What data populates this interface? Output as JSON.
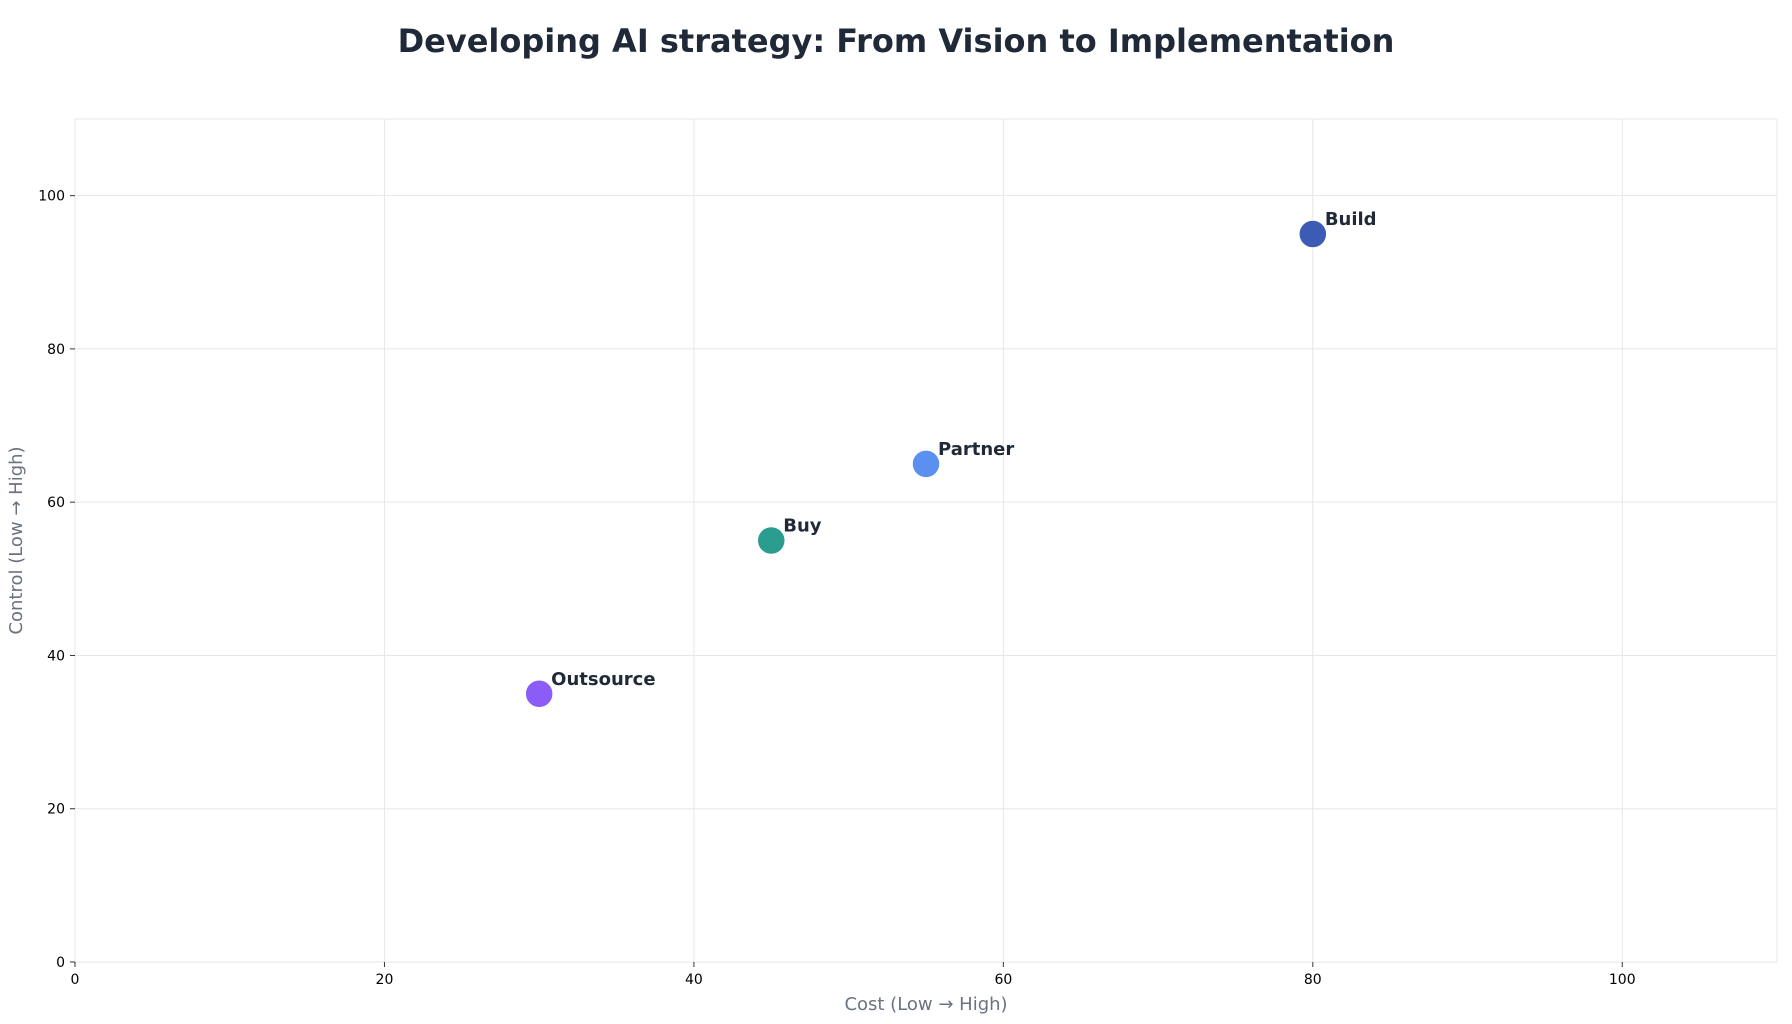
{
  "chart_data": {
    "type": "scatter",
    "title": "Developing AI strategy: From Vision to Implementation",
    "xlabel": "Cost (Low → High)",
    "ylabel": "Control (Low → High)",
    "xlim": [
      0,
      110
    ],
    "ylim": [
      0,
      110
    ],
    "xticks": [
      0,
      20,
      40,
      60,
      80,
      100
    ],
    "yticks": [
      0,
      20,
      40,
      60,
      80,
      100
    ],
    "grid": true,
    "points": [
      {
        "label": "Build",
        "x": 80,
        "y": 95,
        "color": "#3b5bb5"
      },
      {
        "label": "Partner",
        "x": 55,
        "y": 65,
        "color": "#5b8ff0"
      },
      {
        "label": "Buy",
        "x": 45,
        "y": 55,
        "color": "#2a9d8f"
      },
      {
        "label": "Outsource",
        "x": 30,
        "y": 35,
        "color": "#8b5cf6"
      }
    ]
  }
}
